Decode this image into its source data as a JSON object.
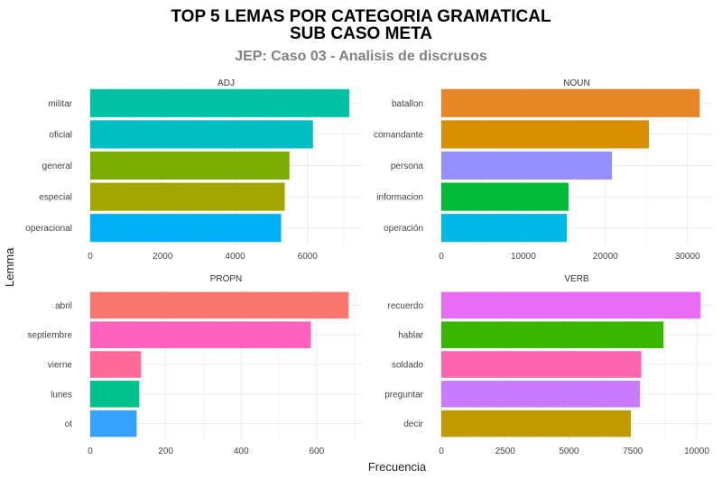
{
  "title_line1": "TOP 5 LEMAS POR CATEGORIA GRAMATICAL",
  "title_line2": "SUB CASO META",
  "subtitle": "JEP: Caso 03 - Analisis de discrusos",
  "xlabel": "Frecuencia",
  "ylabel": "Lemma",
  "chart_data": [
    {
      "type": "bar",
      "orientation": "horizontal",
      "panel": "ADJ",
      "categories": [
        "militar",
        "oficial",
        "general",
        "especial",
        "operacional"
      ],
      "values": [
        7150,
        6150,
        5500,
        5370,
        5270
      ],
      "colors": [
        "#00C1A3",
        "#00BFC4",
        "#7CAE00",
        "#A3A500",
        "#00B0F6"
      ],
      "xlim": [
        0,
        7500
      ],
      "xticks": [
        0,
        2000,
        4000,
        6000
      ]
    },
    {
      "type": "bar",
      "orientation": "horizontal",
      "panel": "NOUN",
      "categories": [
        "batallon",
        "comandante",
        "persona",
        "informacion",
        "operación"
      ],
      "values": [
        31500,
        25300,
        20800,
        15500,
        15300
      ],
      "colors": [
        "#E88526",
        "#D89000",
        "#9590FF",
        "#00BA38",
        "#00B8E7"
      ],
      "xlim": [
        0,
        33000
      ],
      "xticks": [
        0,
        10000,
        20000,
        30000
      ]
    },
    {
      "type": "bar",
      "orientation": "horizontal",
      "panel": "PROPN",
      "categories": [
        "abril",
        "septiembre",
        "vierne",
        "lunes",
        "ot"
      ],
      "values": [
        685,
        585,
        135,
        130,
        123
      ],
      "colors": [
        "#F8766D",
        "#FF62BC",
        "#FF6A98",
        "#00C08B",
        "#35A2FF"
      ],
      "xlim": [
        0,
        720
      ],
      "xticks": [
        0,
        200,
        400,
        600
      ]
    },
    {
      "type": "bar",
      "orientation": "horizontal",
      "panel": "VERB",
      "categories": [
        "recuerdo",
        "hablar",
        "soldado",
        "preguntar",
        "decir"
      ],
      "values": [
        10150,
        8700,
        7830,
        7780,
        7420
      ],
      "colors": [
        "#E76BF3",
        "#39B600",
        "#FF65AE",
        "#C77CFF",
        "#C09B00"
      ],
      "xlim": [
        0,
        10600
      ],
      "xticks": [
        0,
        2500,
        5000,
        7500,
        10000
      ]
    }
  ]
}
